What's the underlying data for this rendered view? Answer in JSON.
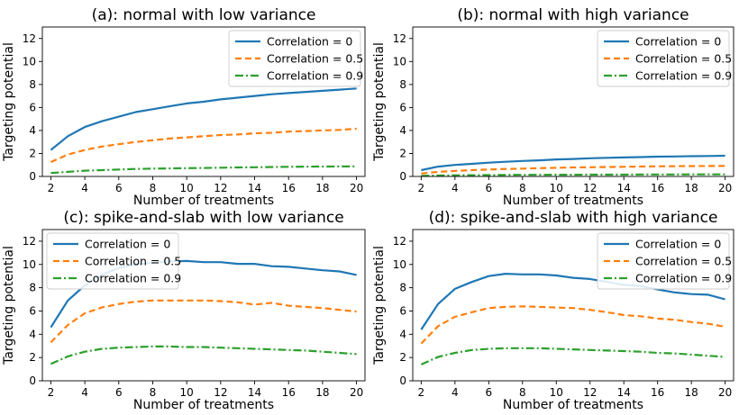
{
  "colors": {
    "series": [
      "#1f77b4",
      "#ff7f0e",
      "#2ca02c"
    ]
  },
  "chart_data": [
    {
      "type": "line",
      "title": "(a): normal with low variance",
      "xlabel": "Number of treatments",
      "ylabel": "Targeting potential",
      "xlim": [
        1.5,
        20.5
      ],
      "ylim": [
        0,
        13
      ],
      "xticks": [
        2,
        4,
        6,
        8,
        10,
        12,
        14,
        16,
        18,
        20
      ],
      "yticks": [
        0,
        2,
        4,
        6,
        8,
        10,
        12
      ],
      "legend": "top-right",
      "x": [
        2,
        3,
        4,
        5,
        6,
        7,
        8,
        9,
        10,
        11,
        12,
        13,
        14,
        15,
        16,
        17,
        18,
        19,
        20
      ],
      "series": [
        {
          "name": "Correlation = 0",
          "style": "solid",
          "values": [
            2.3,
            3.5,
            4.3,
            4.8,
            5.2,
            5.6,
            5.85,
            6.1,
            6.35,
            6.5,
            6.7,
            6.85,
            7.0,
            7.15,
            7.25,
            7.35,
            7.45,
            7.55,
            7.65
          ]
        },
        {
          "name": "Correlation = 0.5",
          "style": "dashed",
          "values": [
            1.25,
            1.9,
            2.3,
            2.6,
            2.8,
            3.0,
            3.15,
            3.3,
            3.4,
            3.5,
            3.6,
            3.65,
            3.75,
            3.8,
            3.9,
            3.95,
            4.0,
            4.05,
            4.15
          ]
        },
        {
          "name": "Correlation = 0.9",
          "style": "dashdot",
          "values": [
            0.3,
            0.4,
            0.5,
            0.55,
            0.6,
            0.65,
            0.68,
            0.7,
            0.72,
            0.74,
            0.76,
            0.78,
            0.8,
            0.82,
            0.84,
            0.85,
            0.86,
            0.87,
            0.88
          ]
        }
      ]
    },
    {
      "type": "line",
      "title": "(b): normal with high variance",
      "xlabel": "Number of treatments",
      "ylabel": "Targeting potential",
      "xlim": [
        1.5,
        20.5
      ],
      "ylim": [
        0,
        13
      ],
      "xticks": [
        2,
        4,
        6,
        8,
        10,
        12,
        14,
        16,
        18,
        20
      ],
      "yticks": [
        0,
        2,
        4,
        6,
        8,
        10,
        12
      ],
      "legend": "top-right",
      "x": [
        2,
        3,
        4,
        5,
        6,
        7,
        8,
        9,
        10,
        11,
        12,
        13,
        14,
        15,
        16,
        17,
        18,
        19,
        20
      ],
      "series": [
        {
          "name": "Correlation = 0",
          "style": "solid",
          "values": [
            0.55,
            0.85,
            1.0,
            1.1,
            1.2,
            1.28,
            1.35,
            1.4,
            1.48,
            1.52,
            1.58,
            1.62,
            1.65,
            1.68,
            1.72,
            1.74,
            1.76,
            1.78,
            1.8
          ]
        },
        {
          "name": "Correlation = 0.5",
          "style": "dashed",
          "values": [
            0.25,
            0.4,
            0.48,
            0.55,
            0.6,
            0.65,
            0.68,
            0.72,
            0.75,
            0.78,
            0.8,
            0.82,
            0.84,
            0.86,
            0.88,
            0.89,
            0.9,
            0.91,
            0.92
          ]
        },
        {
          "name": "Correlation = 0.9",
          "style": "dashdot",
          "values": [
            0.05,
            0.08,
            0.1,
            0.11,
            0.12,
            0.13,
            0.14,
            0.14,
            0.15,
            0.15,
            0.16,
            0.16,
            0.16,
            0.17,
            0.17,
            0.17,
            0.18,
            0.18,
            0.18
          ]
        }
      ]
    },
    {
      "type": "line",
      "title": "(c): spike-and-slab with low variance",
      "xlabel": "Number of treatments",
      "ylabel": "Targeting potential",
      "xlim": [
        1.5,
        20.5
      ],
      "ylim": [
        0,
        13
      ],
      "xticks": [
        2,
        4,
        6,
        8,
        10,
        12,
        14,
        16,
        18,
        20
      ],
      "yticks": [
        0,
        2,
        4,
        6,
        8,
        10,
        12
      ],
      "legend": "top-left",
      "x": [
        2,
        3,
        4,
        5,
        6,
        7,
        8,
        9,
        10,
        11,
        12,
        13,
        14,
        15,
        16,
        17,
        18,
        19,
        20
      ],
      "series": [
        {
          "name": "Correlation = 0",
          "style": "solid",
          "values": [
            4.6,
            6.9,
            8.2,
            9.1,
            9.7,
            10.0,
            10.15,
            10.25,
            10.3,
            10.2,
            10.2,
            10.05,
            10.05,
            9.85,
            9.8,
            9.65,
            9.5,
            9.4,
            9.1
          ]
        },
        {
          "name": "Correlation = 0.5",
          "style": "dashed",
          "values": [
            3.3,
            4.8,
            5.8,
            6.3,
            6.6,
            6.8,
            6.9,
            6.9,
            6.9,
            6.9,
            6.85,
            6.75,
            6.55,
            6.7,
            6.45,
            6.35,
            6.25,
            6.1,
            5.95
          ]
        },
        {
          "name": "Correlation = 0.9",
          "style": "dashdot",
          "values": [
            1.45,
            2.1,
            2.5,
            2.75,
            2.85,
            2.9,
            2.95,
            2.95,
            2.9,
            2.9,
            2.85,
            2.8,
            2.75,
            2.7,
            2.65,
            2.6,
            2.5,
            2.4,
            2.3
          ]
        }
      ]
    },
    {
      "type": "line",
      "title": "(d): spike-and-slab with high variance",
      "xlabel": "Number of treatments",
      "ylabel": "Targeting potential",
      "xlim": [
        1.5,
        20.5
      ],
      "ylim": [
        0,
        13
      ],
      "xticks": [
        2,
        4,
        6,
        8,
        10,
        12,
        14,
        16,
        18,
        20
      ],
      "yticks": [
        0,
        2,
        4,
        6,
        8,
        10,
        12
      ],
      "legend": "top-right",
      "x": [
        2,
        3,
        4,
        5,
        6,
        7,
        8,
        9,
        10,
        11,
        12,
        13,
        14,
        15,
        16,
        17,
        18,
        19,
        20
      ],
      "series": [
        {
          "name": "Correlation = 0",
          "style": "solid",
          "values": [
            4.4,
            6.6,
            7.9,
            8.5,
            9.0,
            9.2,
            9.15,
            9.15,
            9.05,
            8.85,
            8.75,
            8.5,
            8.25,
            8.15,
            7.85,
            7.6,
            7.45,
            7.4,
            7.0
          ]
        },
        {
          "name": "Correlation = 0.5",
          "style": "dashed",
          "values": [
            3.2,
            4.7,
            5.5,
            5.9,
            6.25,
            6.35,
            6.4,
            6.35,
            6.3,
            6.25,
            6.1,
            5.9,
            5.65,
            5.55,
            5.35,
            5.25,
            5.05,
            4.9,
            4.65
          ]
        },
        {
          "name": "Correlation = 0.9",
          "style": "dashdot",
          "values": [
            1.4,
            2.05,
            2.4,
            2.65,
            2.75,
            2.8,
            2.8,
            2.8,
            2.75,
            2.7,
            2.65,
            2.6,
            2.55,
            2.5,
            2.4,
            2.35,
            2.25,
            2.15,
            2.05
          ]
        }
      ]
    }
  ]
}
